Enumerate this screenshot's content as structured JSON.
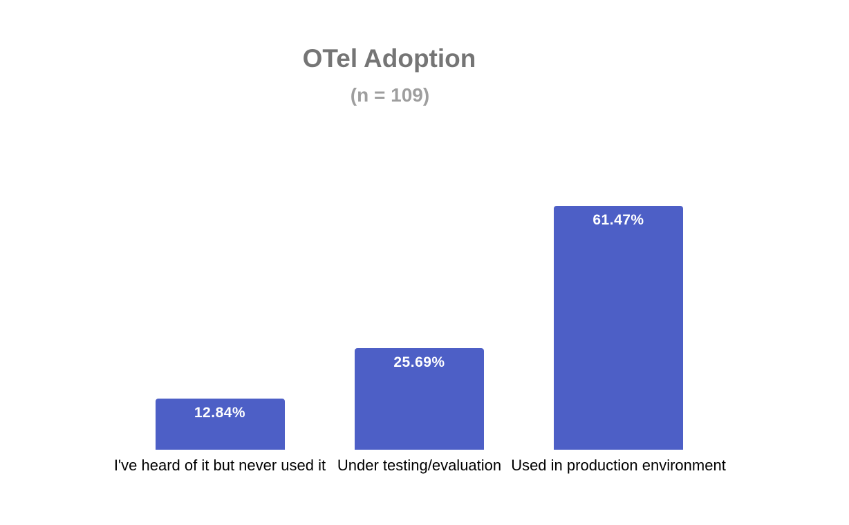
{
  "colors": {
    "bar": "#4D5FC6",
    "title": "#757575",
    "subtitle": "#9E9E9E",
    "value_label": "#FFFFFF",
    "category_label": "#000000",
    "background": "#FFFFFF"
  },
  "chart_data": {
    "type": "bar",
    "title": "OTel Adoption",
    "subtitle": "(n = 109)",
    "categories": [
      "I've heard of it but never used it",
      "Under testing/evaluation",
      "Used in production environment"
    ],
    "values": [
      12.84,
      25.69,
      61.47
    ],
    "value_labels": [
      "12.84%",
      "25.69%",
      "61.47%"
    ],
    "xlabel": "",
    "ylabel": "",
    "ylim": [
      0,
      100
    ],
    "unit": "percent",
    "grid": false,
    "legend": "none",
    "orientation": "vertical",
    "value_label_position": "inside-top"
  }
}
